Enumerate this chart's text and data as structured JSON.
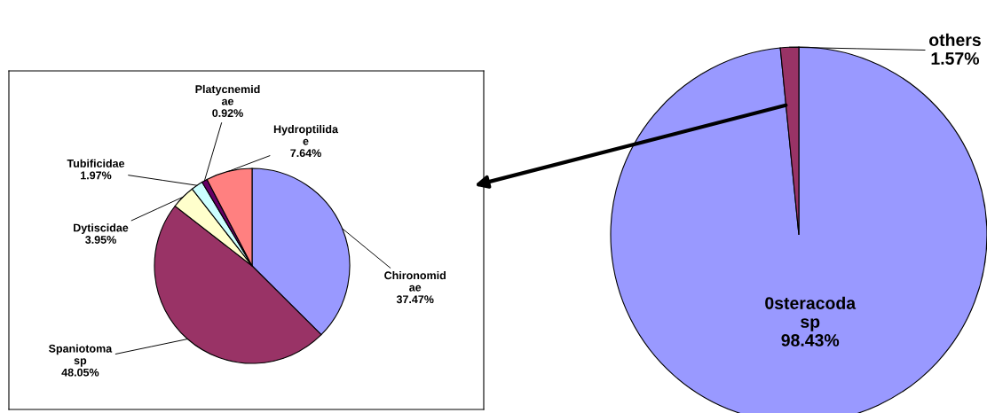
{
  "chart_data": [
    {
      "type": "pie",
      "categories": [
        "Chironomid\nae",
        "Spaniotoma\nsp",
        "Dytiscidae",
        "Tubificidae",
        "Platycnemid\nae",
        "Hydroptilida\ne"
      ],
      "values": [
        37.47,
        48.05,
        3.95,
        1.97,
        0.92,
        7.64
      ],
      "colors": [
        "#9999ff",
        "#993366",
        "#ffffcc",
        "#ccffff",
        "#660066",
        "#ff8080"
      ],
      "value_labels": [
        "37.47%",
        "48.05%",
        "3.95%",
        "1.97%",
        "0.92%",
        "7.64%"
      ]
    },
    {
      "type": "pie",
      "categories": [
        "0steracoda\nsp",
        "others"
      ],
      "values": [
        98.43,
        1.57
      ],
      "colors": [
        "#9999ff",
        "#993366"
      ],
      "value_labels": [
        "98.43%",
        "1.57%"
      ]
    }
  ]
}
